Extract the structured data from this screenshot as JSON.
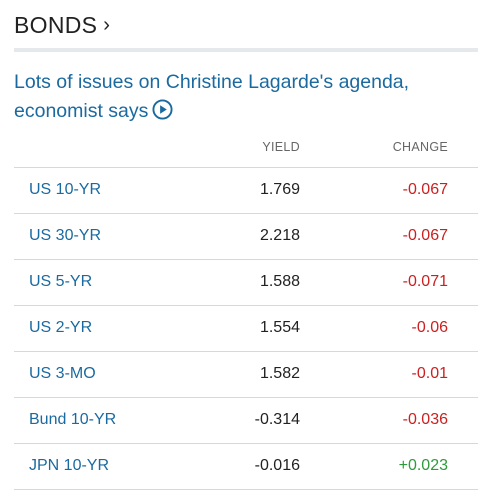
{
  "section": {
    "title": "BONDS",
    "chevron": "›"
  },
  "headline": {
    "text": "Lots of issues on Christine Lagarde's agenda, economist says"
  },
  "table": {
    "columns": {
      "yield": "YIELD",
      "change": "CHANGE"
    },
    "rows": [
      {
        "name": "US 10-YR",
        "yield": "1.769",
        "change": "-0.067",
        "direction": "down"
      },
      {
        "name": "US 30-YR",
        "yield": "2.218",
        "change": "-0.067",
        "direction": "down"
      },
      {
        "name": "US 5-YR",
        "yield": "1.588",
        "change": "-0.071",
        "direction": "down"
      },
      {
        "name": "US 2-YR",
        "yield": "1.554",
        "change": "-0.06",
        "direction": "down"
      },
      {
        "name": "US 3-MO",
        "yield": "1.582",
        "change": "-0.01",
        "direction": "down"
      },
      {
        "name": "Bund 10-YR",
        "yield": "-0.314",
        "change": "-0.036",
        "direction": "down"
      },
      {
        "name": "JPN 10-YR",
        "yield": "-0.016",
        "change": "+0.023",
        "direction": "up"
      }
    ]
  },
  "colors": {
    "link": "#1a6aa0",
    "negative": "#cc2020",
    "positive": "#2e9a3c",
    "divider": "#d6d9dc"
  },
  "icons": {
    "video": "play-circle-icon"
  }
}
